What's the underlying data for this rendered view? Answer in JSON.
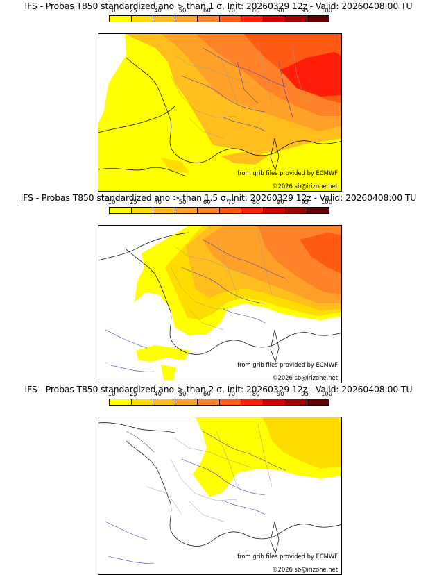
{
  "legend": {
    "ticks": [
      "10",
      "25",
      "40",
      "50",
      "60",
      "70",
      "80",
      "90",
      "95",
      "100"
    ],
    "colors": [
      "#ffff00",
      "#ffdc00",
      "#ffbe1e",
      "#ffa028",
      "#ff8228",
      "#ff5a14",
      "#ff1e0a",
      "#d20000",
      "#a00000",
      "#640000"
    ]
  },
  "panels": [
    {
      "title": "IFS - Probas T850  standardized ano > than 1 σ, Init: 20260329 12z - Valid: 20260408:00 TU",
      "source_credit": "from grib files provided by ECMWF",
      "copyright": "©2026 sb@irizone.net"
    },
    {
      "title": "IFS - Probas T850  standardized ano > than 1.5 σ, Init: 20260329 12z - Valid: 20260408:00 TU",
      "source_credit": "from grib files provided by ECMWF",
      "copyright": "©2026 sb@irizone.net"
    },
    {
      "title": "IFS - Probas T850  standardized ano > than 2 σ, Init: 20260329 12z - Valid: 20260408:00 TU",
      "source_credit": "from grib files provided by ECMWF",
      "copyright": "©2026 sb@irizone.net"
    }
  ]
}
